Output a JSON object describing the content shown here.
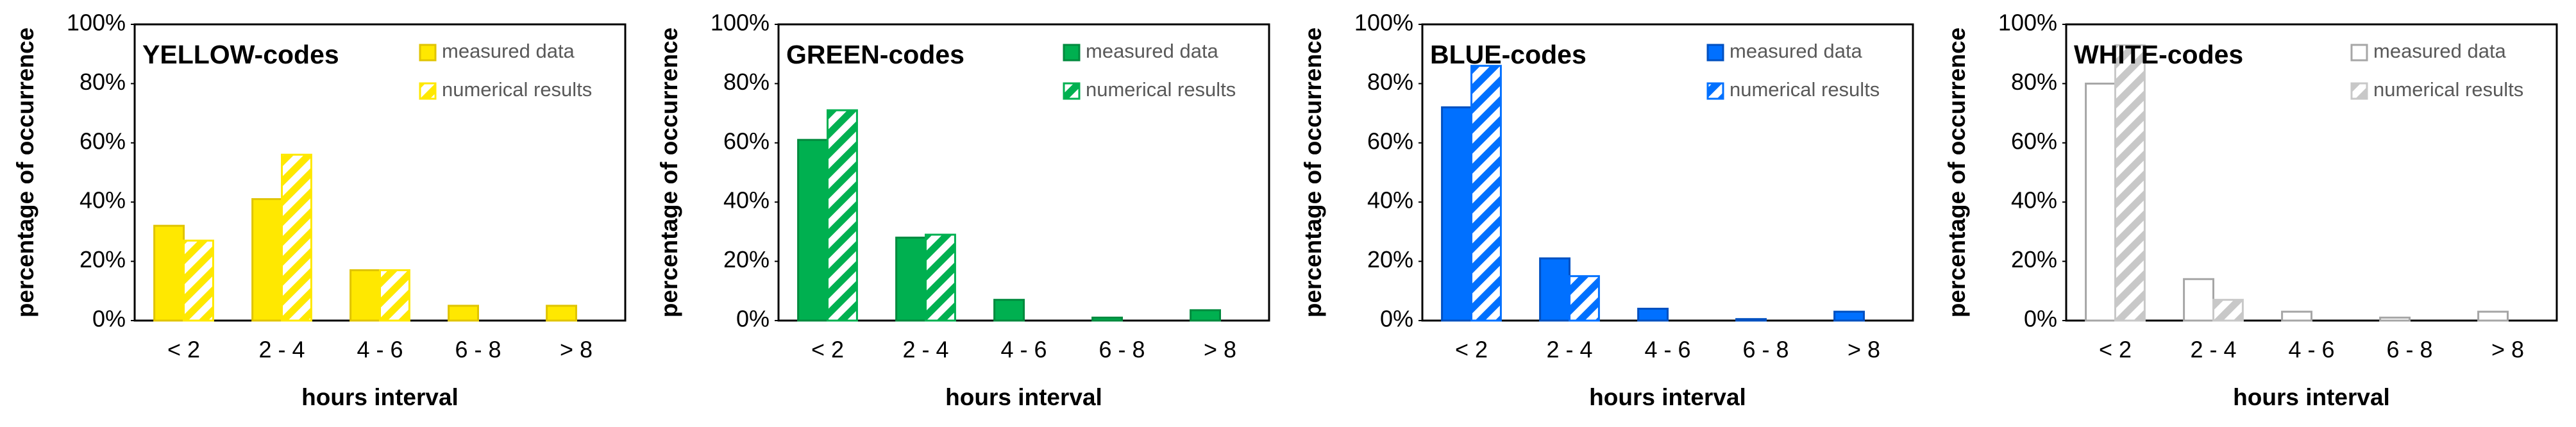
{
  "chart_data": [
    {
      "type": "bar",
      "title": "YELLOW-codes",
      "xlabel": "hours interval",
      "ylabel": "percentage of occurrence",
      "categories": [
        "< 2",
        "2 - 4",
        "4 - 6",
        "6 - 8",
        "> 8"
      ],
      "series": [
        {
          "name": "measured data",
          "color": "#FFE800",
          "edgecolor": "#E0C400",
          "hatch": false,
          "values": [
            32,
            41,
            17,
            5,
            5
          ]
        },
        {
          "name": "numerical results",
          "color": "#FFE800",
          "edgecolor": "#FFE800",
          "hatch": true,
          "values": [
            27,
            56,
            17,
            0,
            0
          ]
        }
      ],
      "ylim": [
        0,
        100
      ],
      "yticks": [
        {
          "value": 0,
          "label": "0%"
        },
        {
          "value": 20,
          "label": "20%"
        },
        {
          "value": 40,
          "label": "40%"
        },
        {
          "value": 60,
          "label": "60%"
        },
        {
          "value": 80,
          "label": "80%"
        },
        {
          "value": 100,
          "label": "100%"
        }
      ]
    },
    {
      "type": "bar",
      "title": "GREEN-codes",
      "xlabel": "hours interval",
      "ylabel": "percentage of occurrence",
      "categories": [
        "< 2",
        "2 - 4",
        "4 - 6",
        "6 - 8",
        "> 8"
      ],
      "series": [
        {
          "name": "measured data",
          "color": "#00B050",
          "edgecolor": "#008A3E",
          "hatch": false,
          "values": [
            61,
            28,
            7,
            1,
            3.5
          ]
        },
        {
          "name": "numerical results",
          "color": "#00B050",
          "edgecolor": "#00B050",
          "hatch": true,
          "values": [
            71,
            29,
            0,
            0,
            0
          ]
        }
      ],
      "ylim": [
        0,
        100
      ],
      "yticks": [
        {
          "value": 0,
          "label": "0%"
        },
        {
          "value": 20,
          "label": "20%"
        },
        {
          "value": 40,
          "label": "40%"
        },
        {
          "value": 60,
          "label": "60%"
        },
        {
          "value": 80,
          "label": "80%"
        },
        {
          "value": 100,
          "label": "100%"
        }
      ]
    },
    {
      "type": "bar",
      "title": "BLUE-codes",
      "xlabel": "hours interval",
      "ylabel": "percentage of occurrence",
      "categories": [
        "< 2",
        "2 - 4",
        "4 - 6",
        "6 - 8",
        "> 8"
      ],
      "series": [
        {
          "name": "measured data",
          "color": "#0070FF",
          "edgecolor": "#0050C0",
          "hatch": false,
          "values": [
            72,
            21,
            4,
            0.5,
            3
          ]
        },
        {
          "name": "numerical results",
          "color": "#0070FF",
          "edgecolor": "#0070FF",
          "hatch": true,
          "values": [
            86,
            15,
            0,
            0,
            0
          ]
        }
      ],
      "ylim": [
        0,
        100
      ],
      "yticks": [
        {
          "value": 0,
          "label": "0%"
        },
        {
          "value": 20,
          "label": "20%"
        },
        {
          "value": 40,
          "label": "40%"
        },
        {
          "value": 60,
          "label": "60%"
        },
        {
          "value": 80,
          "label": "80%"
        },
        {
          "value": 100,
          "label": "100%"
        }
      ]
    },
    {
      "type": "bar",
      "title": "WHITE-codes",
      "xlabel": "hours interval",
      "ylabel": "percentage of occurrence",
      "categories": [
        "< 2",
        "2 - 4",
        "4 - 6",
        "6 - 8",
        "> 8"
      ],
      "series": [
        {
          "name": "measured data",
          "color": "#FFFFFF",
          "edgecolor": "#A6A6A6",
          "hatch": false,
          "values": [
            80,
            14,
            3,
            1,
            3
          ]
        },
        {
          "name": "numerical results",
          "color": "#C8C8C8",
          "edgecolor": "#C8C8C8",
          "hatch": true,
          "values": [
            93,
            7,
            0,
            0,
            0
          ]
        }
      ],
      "ylim": [
        0,
        100
      ],
      "yticks": [
        {
          "value": 0,
          "label": "0%"
        },
        {
          "value": 20,
          "label": "20%"
        },
        {
          "value": 40,
          "label": "40%"
        },
        {
          "value": 60,
          "label": "60%"
        },
        {
          "value": 80,
          "label": "80%"
        },
        {
          "value": 100,
          "label": "100%"
        }
      ]
    }
  ]
}
